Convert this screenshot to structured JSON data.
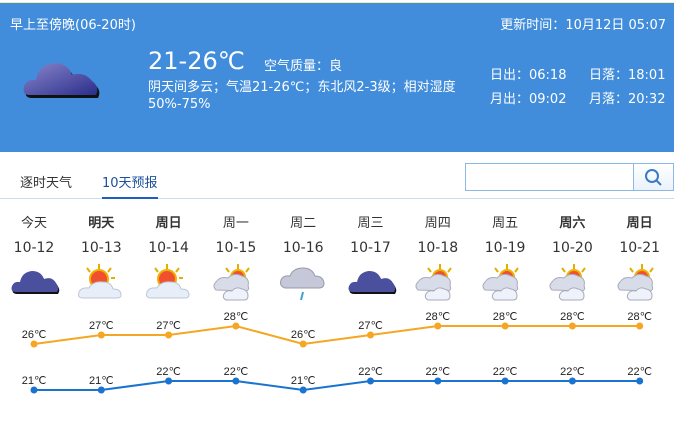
{
  "header": {
    "period": "早上至傍晚(06-20时)",
    "update_label": "更新时间：",
    "update_time": "10月12日 05:07",
    "temp_range": "21-26℃",
    "air_label": "空气质量：",
    "air_value": "良",
    "desc": "阴天间多云；气温21-26℃；东北风2-3级；相对湿度50%-75%",
    "sunrise": "日出：06:18",
    "sunset": "日落：18:01",
    "moonrise": "月出：09:02",
    "moonset": "月落：20:32",
    "icon": "overcast-cloud-icon"
  },
  "tabs": [
    {
      "label": "逐时天气",
      "active": false
    },
    {
      "label": "10天预报",
      "active": true
    }
  ],
  "search": {
    "value": "",
    "placeholder": "",
    "icon": "search-icon"
  },
  "forecast": [
    {
      "day": "今天",
      "date": "10-12",
      "icon": "overcast",
      "high": "26℃",
      "low": "21℃",
      "bold": false
    },
    {
      "day": "明天",
      "date": "10-13",
      "icon": "sunny-cloudy",
      "high": "27℃",
      "low": "21℃",
      "bold": true
    },
    {
      "day": "周日",
      "date": "10-14",
      "icon": "sunny-cloudy",
      "high": "27℃",
      "low": "22℃",
      "bold": true
    },
    {
      "day": "周一",
      "date": "10-15",
      "icon": "partly-cloudy",
      "high": "28℃",
      "low": "22℃",
      "bold": false
    },
    {
      "day": "周二",
      "date": "10-16",
      "icon": "shower",
      "high": "26℃",
      "low": "21℃",
      "bold": false
    },
    {
      "day": "周三",
      "date": "10-17",
      "icon": "overcast",
      "high": "27℃",
      "low": "22℃",
      "bold": false
    },
    {
      "day": "周四",
      "date": "10-18",
      "icon": "partly-cloudy",
      "high": "28℃",
      "low": "22℃",
      "bold": false
    },
    {
      "day": "周五",
      "date": "10-19",
      "icon": "partly-cloudy",
      "high": "28℃",
      "low": "22℃",
      "bold": false
    },
    {
      "day": "周六",
      "date": "10-20",
      "icon": "partly-cloudy",
      "high": "28℃",
      "low": "22℃",
      "bold": true
    },
    {
      "day": "周日",
      "date": "10-21",
      "icon": "partly-cloudy",
      "high": "28℃",
      "low": "22℃",
      "bold": true
    }
  ],
  "chart_data": {
    "type": "line",
    "categories": [
      "10-12",
      "10-13",
      "10-14",
      "10-15",
      "10-16",
      "10-17",
      "10-18",
      "10-19",
      "10-20",
      "10-21"
    ],
    "series": [
      {
        "values": [
          26,
          27,
          27,
          28,
          26,
          27,
          28,
          28,
          28,
          28
        ],
        "color": "#f5a623"
      },
      {
        "values": [
          21,
          21,
          22,
          22,
          21,
          22,
          22,
          22,
          22,
          22
        ],
        "color": "#1a73d0"
      }
    ]
  }
}
